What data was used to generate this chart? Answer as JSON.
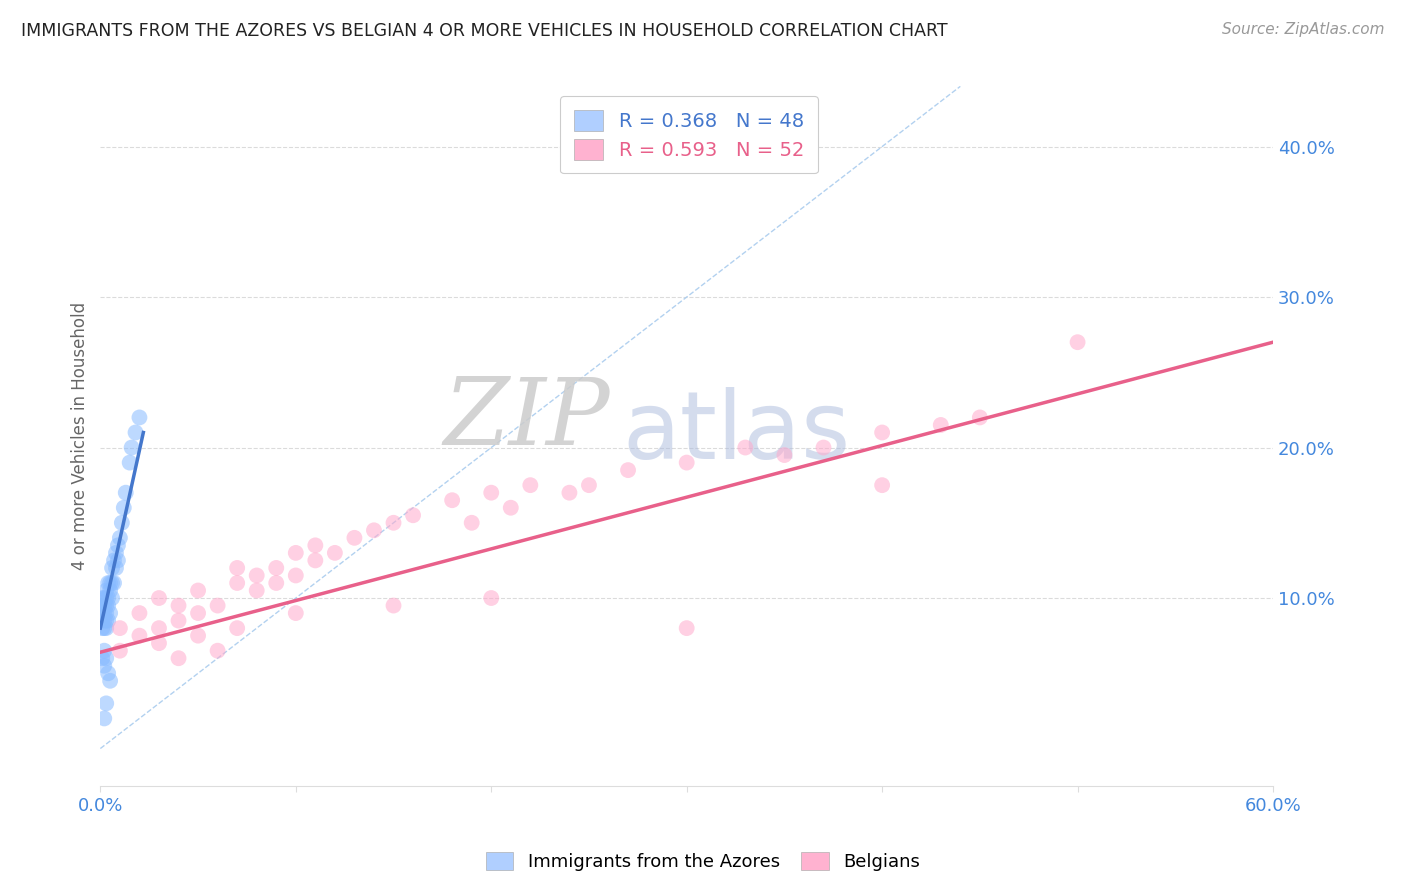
{
  "title": "IMMIGRANTS FROM THE AZORES VS BELGIAN 4 OR MORE VEHICLES IN HOUSEHOLD CORRELATION CHART",
  "source": "Source: ZipAtlas.com",
  "ylabel": "4 or more Vehicles in Household",
  "watermark_zip": "ZIP",
  "watermark_atlas": "atlas",
  "xlim": [
    0.0,
    0.6
  ],
  "ylim": [
    -0.025,
    0.44
  ],
  "x_tick_positions": [
    0.0,
    0.1,
    0.2,
    0.3,
    0.4,
    0.5,
    0.6
  ],
  "x_tick_labels": [
    "0.0%",
    "",
    "",
    "",
    "",
    "",
    "60.0%"
  ],
  "y_ticks_right": [
    0.1,
    0.2,
    0.3,
    0.4
  ],
  "y_tick_labels_right": [
    "10.0%",
    "20.0%",
    "30.0%",
    "40.0%"
  ],
  "legend_label1": "R = 0.368   N = 48",
  "legend_label2": "R = 0.593   N = 52",
  "legend_color1": "#a8caff",
  "legend_color2": "#ffaacb",
  "line1_color": "#4477cc",
  "line2_color": "#e8608a",
  "diagonal_color": "#aaccee",
  "scatter1_color": "#88bbff",
  "scatter2_color": "#ffaacc",
  "background_color": "#ffffff",
  "grid_color": "#cccccc",
  "title_color": "#222222",
  "source_color": "#999999",
  "tick_label_color": "#4488dd",
  "ylabel_color": "#666666",
  "azores_x": [
    0.001,
    0.001,
    0.001,
    0.001,
    0.001,
    0.002,
    0.002,
    0.002,
    0.002,
    0.002,
    0.003,
    0.003,
    0.003,
    0.003,
    0.003,
    0.003,
    0.004,
    0.004,
    0.004,
    0.004,
    0.005,
    0.005,
    0.005,
    0.006,
    0.006,
    0.006,
    0.007,
    0.007,
    0.008,
    0.008,
    0.009,
    0.009,
    0.01,
    0.011,
    0.012,
    0.013,
    0.015,
    0.016,
    0.018,
    0.02,
    0.001,
    0.002,
    0.002,
    0.003,
    0.004,
    0.005,
    0.003,
    0.002
  ],
  "azores_y": [
    0.085,
    0.09,
    0.095,
    0.1,
    0.08,
    0.085,
    0.09,
    0.095,
    0.1,
    0.08,
    0.095,
    0.1,
    0.105,
    0.085,
    0.09,
    0.08,
    0.095,
    0.1,
    0.11,
    0.085,
    0.105,
    0.11,
    0.09,
    0.1,
    0.11,
    0.12,
    0.11,
    0.125,
    0.12,
    0.13,
    0.125,
    0.135,
    0.14,
    0.15,
    0.16,
    0.17,
    0.19,
    0.2,
    0.21,
    0.22,
    0.06,
    0.055,
    0.065,
    0.06,
    0.05,
    0.045,
    0.03,
    0.02
  ],
  "belgians_x": [
    0.01,
    0.01,
    0.02,
    0.02,
    0.03,
    0.03,
    0.04,
    0.04,
    0.05,
    0.05,
    0.06,
    0.07,
    0.07,
    0.08,
    0.08,
    0.09,
    0.09,
    0.1,
    0.1,
    0.11,
    0.11,
    0.12,
    0.13,
    0.14,
    0.15,
    0.16,
    0.18,
    0.19,
    0.2,
    0.21,
    0.22,
    0.24,
    0.25,
    0.27,
    0.3,
    0.33,
    0.35,
    0.37,
    0.4,
    0.43,
    0.45,
    0.5,
    0.03,
    0.04,
    0.05,
    0.06,
    0.07,
    0.1,
    0.15,
    0.2,
    0.3,
    0.4
  ],
  "belgians_y": [
    0.065,
    0.08,
    0.075,
    0.09,
    0.08,
    0.1,
    0.085,
    0.095,
    0.09,
    0.105,
    0.095,
    0.11,
    0.12,
    0.115,
    0.105,
    0.12,
    0.11,
    0.13,
    0.115,
    0.125,
    0.135,
    0.13,
    0.14,
    0.145,
    0.15,
    0.155,
    0.165,
    0.15,
    0.17,
    0.16,
    0.175,
    0.17,
    0.175,
    0.185,
    0.19,
    0.2,
    0.195,
    0.2,
    0.21,
    0.215,
    0.22,
    0.27,
    0.07,
    0.06,
    0.075,
    0.065,
    0.08,
    0.09,
    0.095,
    0.1,
    0.08,
    0.175
  ],
  "line1_x0": 0.0,
  "line1_y0": 0.08,
  "line1_x1": 0.022,
  "line1_y1": 0.21,
  "line2_x0": 0.0,
  "line2_y0": 0.064,
  "line2_x1": 0.6,
  "line2_y1": 0.27
}
